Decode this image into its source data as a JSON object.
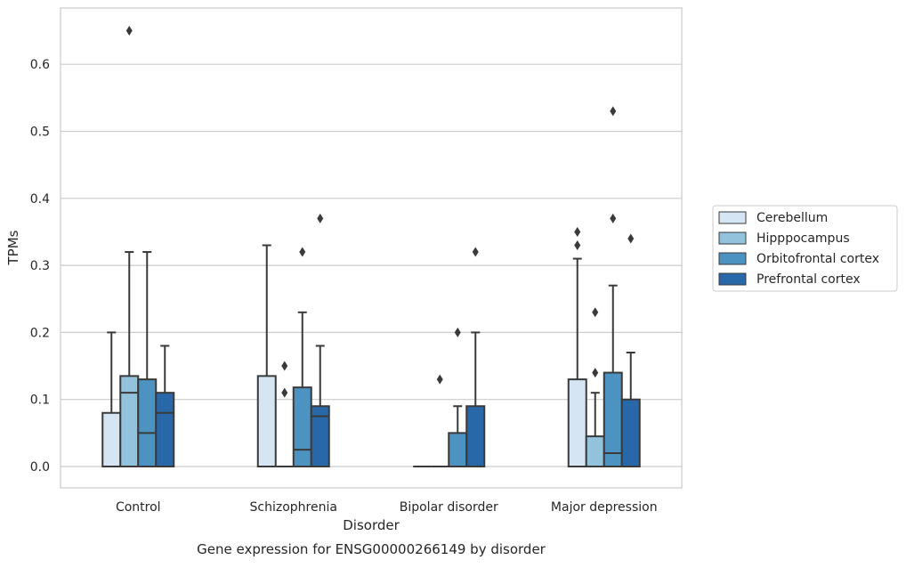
{
  "chart_data": {
    "type": "box",
    "title": "Gene expression for ENSG00000266149 by disorder",
    "xlabel": "Disorder",
    "ylabel": "TPMs",
    "ylim": [
      -0.032,
      0.685
    ],
    "yticks": [
      0.0,
      0.1,
      0.2,
      0.3,
      0.4,
      0.5,
      0.6
    ],
    "ytick_labels": [
      "0.0",
      "0.1",
      "0.2",
      "0.3",
      "0.4",
      "0.5",
      "0.6"
    ],
    "grid": "horizontal",
    "legend_position": "right",
    "categories": [
      "Control",
      "Schizophrenia",
      "Bipolar disorder",
      "Major depression"
    ],
    "series": [
      {
        "name": "Cerebellum",
        "color": "#d6e5f3",
        "boxes": [
          {
            "q1": 0.0,
            "median": 0.0,
            "q3": 0.08,
            "whisker_low": 0.0,
            "whisker_high": 0.2,
            "outliers": []
          },
          {
            "q1": 0.0,
            "median": 0.0,
            "q3": 0.135,
            "whisker_low": 0.0,
            "whisker_high": 0.33,
            "outliers": []
          },
          {
            "q1": 0.0,
            "median": 0.0,
            "q3": 0.0,
            "whisker_low": 0.0,
            "whisker_high": 0.0,
            "outliers": []
          },
          {
            "q1": 0.0,
            "median": 0.0,
            "q3": 0.13,
            "whisker_low": 0.0,
            "whisker_high": 0.31,
            "outliers": [
              0.33,
              0.35
            ]
          }
        ]
      },
      {
        "name": "Hipppocampus",
        "color": "#93c2dd",
        "boxes": [
          {
            "q1": 0.0,
            "median": 0.11,
            "q3": 0.135,
            "whisker_low": 0.0,
            "whisker_high": 0.32,
            "outliers": [
              0.65
            ]
          },
          {
            "q1": 0.0,
            "median": 0.0,
            "q3": 0.0,
            "whisker_low": 0.0,
            "whisker_high": 0.0,
            "outliers": [
              0.11,
              0.15
            ]
          },
          {
            "q1": 0.0,
            "median": 0.0,
            "q3": 0.0,
            "whisker_low": 0.0,
            "whisker_high": 0.0,
            "outliers": [
              0.13
            ]
          },
          {
            "q1": 0.0,
            "median": 0.0,
            "q3": 0.045,
            "whisker_low": 0.0,
            "whisker_high": 0.11,
            "outliers": [
              0.14,
              0.23
            ]
          }
        ]
      },
      {
        "name": "Orbitofrontal cortex",
        "color": "#4d93c2",
        "boxes": [
          {
            "q1": 0.0,
            "median": 0.05,
            "q3": 0.13,
            "whisker_low": 0.0,
            "whisker_high": 0.32,
            "outliers": []
          },
          {
            "q1": 0.0,
            "median": 0.025,
            "q3": 0.118,
            "whisker_low": 0.0,
            "whisker_high": 0.23,
            "outliers": [
              0.32
            ]
          },
          {
            "q1": 0.0,
            "median": 0.0,
            "q3": 0.05,
            "whisker_low": 0.0,
            "whisker_high": 0.09,
            "outliers": [
              0.2
            ]
          },
          {
            "q1": 0.0,
            "median": 0.02,
            "q3": 0.14,
            "whisker_low": 0.0,
            "whisker_high": 0.27,
            "outliers": [
              0.37,
              0.53
            ]
          }
        ]
      },
      {
        "name": "Prefrontal cortex",
        "color": "#2868a8",
        "boxes": [
          {
            "q1": 0.0,
            "median": 0.08,
            "q3": 0.11,
            "whisker_low": 0.0,
            "whisker_high": 0.18,
            "outliers": []
          },
          {
            "q1": 0.0,
            "median": 0.075,
            "q3": 0.09,
            "whisker_low": 0.0,
            "whisker_high": 0.18,
            "outliers": [
              0.37
            ]
          },
          {
            "q1": 0.0,
            "median": 0.0,
            "q3": 0.09,
            "whisker_low": 0.0,
            "whisker_high": 0.2,
            "outliers": [
              0.32
            ]
          },
          {
            "q1": 0.0,
            "median": 0.0,
            "q3": 0.1,
            "whisker_low": 0.0,
            "whisker_high": 0.17,
            "outliers": [
              0.34
            ]
          }
        ]
      }
    ]
  }
}
